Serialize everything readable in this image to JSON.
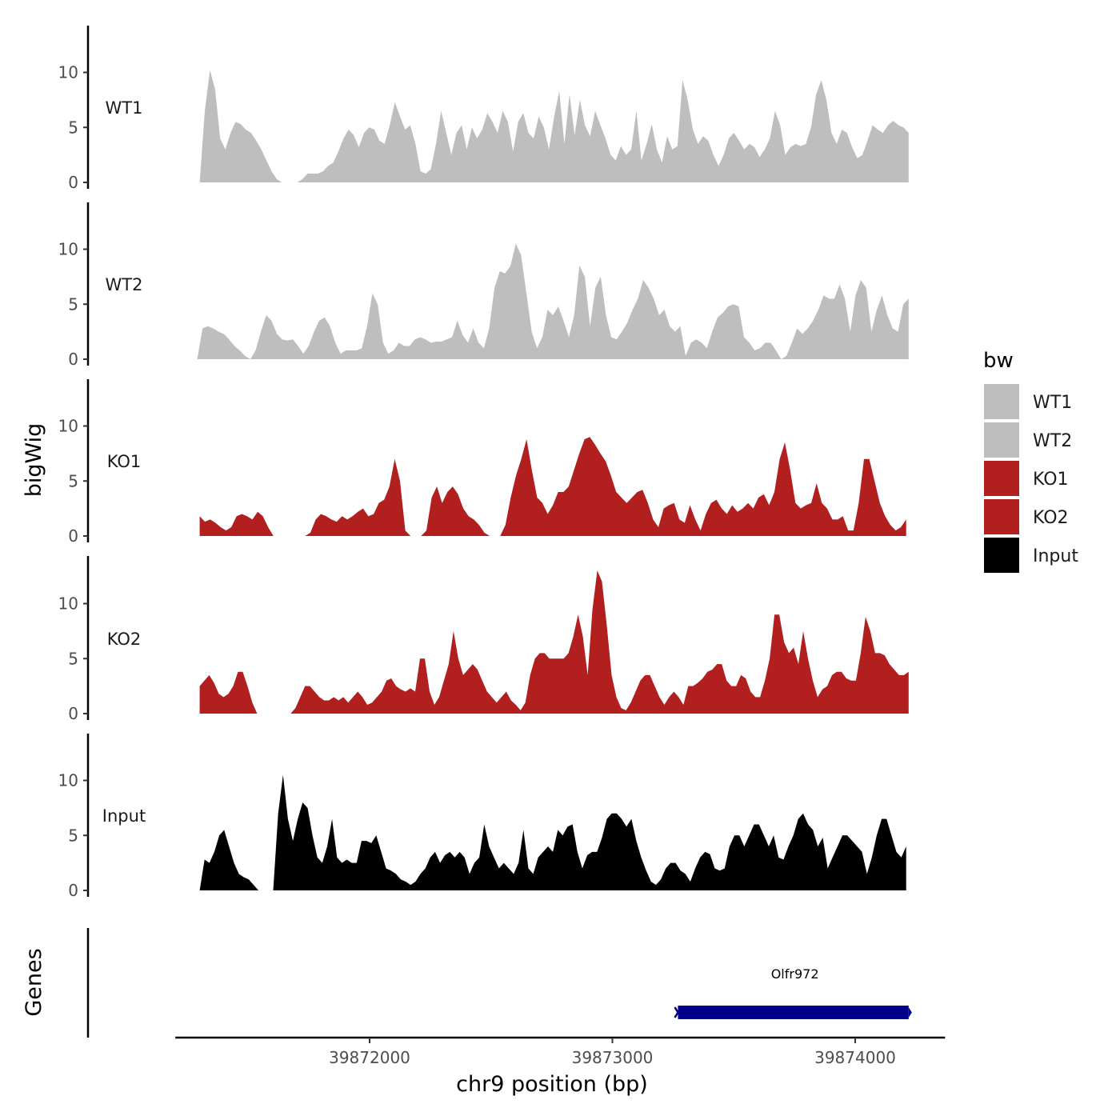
{
  "chart_data": {
    "type": "area",
    "chromosome": "chr9",
    "xlabel": "chr9 position (bp)",
    "ylabel": "bigWig",
    "genes_panel_label": "Genes",
    "xlim": [
      39871200,
      39874370
    ],
    "x_ticks": [
      39872000,
      39873000,
      39874000
    ],
    "x_tick_labels": [
      "39872000",
      "39873000",
      "39874000"
    ],
    "ylim": [
      0,
      14
    ],
    "y_ticks": [
      0,
      5,
      10
    ],
    "y_tick_labels": [
      "0",
      "5",
      "10"
    ],
    "legend": {
      "title": "bw",
      "placement": "right",
      "entries": [
        {
          "label": "WT1",
          "color": "#bebebe"
        },
        {
          "label": "WT2",
          "color": "#bebebe"
        },
        {
          "label": "KO1",
          "color": "#b21f1f"
        },
        {
          "label": "KO2",
          "color": "#b21f1f"
        },
        {
          "label": "Input",
          "color": "#000000"
        }
      ]
    },
    "series": [
      {
        "name": "WT1",
        "color": "#bebebe",
        "x_start": 39871300,
        "x_end": 39874220,
        "values": [
          0,
          6.5,
          10.2,
          8.5,
          4,
          3,
          4.5,
          5.5,
          5.3,
          4.8,
          4.5,
          3.8,
          3,
          2,
          1,
          0.3,
          0,
          0,
          0,
          0,
          0.3,
          0.8,
          0.8,
          0.8,
          1,
          1.5,
          1.8,
          2.8,
          4,
          4.8,
          4.3,
          3.2,
          4.5,
          5,
          4.8,
          3.8,
          3.5,
          5.2,
          7.3,
          6,
          4.8,
          5.2,
          3.5,
          1,
          0.8,
          1.2,
          3.5,
          6.5,
          4.5,
          2.5,
          4.5,
          5.2,
          3,
          5,
          4,
          4.8,
          6.3,
          5.5,
          4.5,
          6.5,
          5.5,
          2.8,
          5.5,
          6.3,
          4.5,
          4,
          6,
          5,
          3,
          6,
          8.3,
          3.5,
          8,
          4.3,
          7.5,
          5.2,
          4.2,
          6.5,
          5.2,
          4,
          2.5,
          2,
          3.3,
          2.5,
          3,
          6.5,
          2,
          3.5,
          5.3,
          3,
          1.8,
          4.2,
          3,
          3.3,
          9.3,
          7.5,
          4.8,
          3.5,
          4.2,
          3.8,
          2.5,
          1.5,
          2.5,
          4,
          4.5,
          3.8,
          3,
          3.5,
          3.2,
          2.3,
          3,
          4,
          6.5,
          5.2,
          2.5,
          3.2,
          3.5,
          3.3,
          3.5,
          5,
          8,
          9.3,
          7.5,
          4.5,
          3.5,
          4.8,
          4.5,
          3.2,
          2.2,
          2.5,
          3.8,
          5.2,
          4.8,
          4.5,
          5.2,
          5.6,
          5.2,
          5,
          4.5
        ]
      },
      {
        "name": "WT2",
        "color": "#bebebe",
        "x_start": 39871290,
        "x_end": 39874220,
        "values": [
          0,
          2.8,
          3,
          2.8,
          2.5,
          2.3,
          1.8,
          1.2,
          0.8,
          0.3,
          0,
          0.8,
          2.5,
          4,
          3.5,
          2.3,
          1.8,
          1.7,
          1.8,
          1.2,
          0.5,
          1.2,
          2.5,
          3.5,
          3.8,
          3,
          1.5,
          0.5,
          0.8,
          0.8,
          0.8,
          1,
          3,
          6,
          5,
          1.5,
          0.5,
          0.8,
          1.5,
          1.2,
          1.2,
          1.8,
          2,
          1.8,
          1.5,
          1.6,
          1.6,
          1.8,
          2,
          3.5,
          2.2,
          1.5,
          2.8,
          1.5,
          1,
          2.8,
          6.5,
          8,
          7.8,
          8.5,
          10.5,
          9.5,
          6,
          2.5,
          1,
          2,
          4.5,
          4,
          4.8,
          3.5,
          2,
          4,
          8.5,
          7.5,
          3,
          6.5,
          7.5,
          4,
          2,
          1.8,
          2.5,
          3.3,
          4.5,
          5.5,
          7.2,
          6.5,
          5.5,
          4,
          4.5,
          3,
          2.5,
          3,
          0.3,
          1.5,
          1.8,
          1.5,
          1,
          2.5,
          3.8,
          4.2,
          4.8,
          5,
          4.8,
          2,
          1.5,
          0.8,
          1,
          1.5,
          1.5,
          0.8,
          0,
          0.3,
          1.5,
          2.8,
          2.3,
          2.8,
          3.5,
          4.5,
          5.8,
          5.5,
          5.5,
          6.8,
          5.5,
          2.5,
          5.8,
          7.2,
          6.5,
          2.5,
          4.5,
          5.8,
          4,
          2.8,
          2.5,
          5,
          5.5
        ]
      },
      {
        "name": "KO1",
        "color": "#b21f1f",
        "x_start": 39871300,
        "x_end": 39874210,
        "values": [
          1.8,
          1.3,
          1.5,
          1.2,
          0.8,
          0.5,
          0.8,
          1.8,
          2,
          1.8,
          1.5,
          2.2,
          1.8,
          0.8,
          0,
          0,
          0,
          0,
          0,
          0,
          0,
          0.3,
          1.5,
          2,
          1.8,
          1.5,
          1.3,
          1.8,
          1.5,
          1.8,
          2.2,
          2.5,
          1.8,
          2,
          3,
          3.3,
          4.5,
          7,
          5,
          0.5,
          0,
          0,
          0,
          0.5,
          3.5,
          4.5,
          3,
          4,
          4.5,
          3.8,
          2.5,
          1.8,
          1.5,
          1,
          0.3,
          0,
          0,
          0,
          1,
          3.5,
          5.5,
          7,
          8.8,
          6,
          3.5,
          3,
          2,
          2.8,
          4,
          4,
          4.5,
          6,
          7.5,
          8.8,
          9,
          8.3,
          7.5,
          6.8,
          5.5,
          4,
          3.5,
          3,
          3.5,
          4,
          4.2,
          3,
          1.5,
          0.8,
          2.5,
          2.8,
          3,
          1.5,
          1.2,
          2.8,
          1.5,
          0.5,
          2,
          3,
          3.3,
          2.5,
          2,
          2.8,
          2.2,
          2.5,
          3,
          2.5,
          3.5,
          3.8,
          2.8,
          4,
          7,
          8.5,
          6,
          3,
          2.5,
          2.8,
          3,
          4.8,
          3,
          2.5,
          1.5,
          1.5,
          1.8,
          0.5,
          0.5,
          3,
          7,
          7,
          5,
          3,
          1.8,
          1,
          0.5,
          0.8,
          1.5
        ]
      },
      {
        "name": "KO2",
        "color": "#b21f1f",
        "x_start": 39871300,
        "x_end": 39874220,
        "values": [
          2.5,
          3,
          3.5,
          2.8,
          1.8,
          1.5,
          1.8,
          2.5,
          3.8,
          3.8,
          2.5,
          1,
          0,
          0,
          0,
          0,
          0,
          0,
          0,
          0,
          0.5,
          1.5,
          2.5,
          2.5,
          2,
          1.5,
          1.2,
          1.2,
          1.5,
          1.2,
          1.5,
          1,
          1.5,
          2,
          1.5,
          0.8,
          1,
          1.5,
          2,
          3,
          3.2,
          2.5,
          2.2,
          2,
          2.3,
          2,
          5,
          5,
          2,
          0.8,
          1.5,
          3,
          4.5,
          7.5,
          5,
          3.5,
          4,
          4.5,
          4,
          3,
          2,
          1.5,
          1,
          1.5,
          2,
          1.2,
          0.8,
          0.3,
          1,
          3.5,
          5,
          5.5,
          5.5,
          5,
          5,
          5,
          5,
          5.5,
          7,
          9,
          7,
          3.5,
          9.5,
          13,
          12,
          8,
          3.5,
          1.5,
          0.5,
          0.3,
          1,
          2,
          3,
          3.5,
          3.5,
          2.5,
          1.5,
          0.8,
          1.5,
          2,
          1.5,
          0.8,
          2.5,
          2.5,
          2.8,
          3.2,
          3.8,
          4,
          4.5,
          4.5,
          3,
          2.5,
          2.5,
          3.5,
          3.2,
          2,
          1.5,
          1.5,
          3,
          5,
          9,
          9,
          6.5,
          5.5,
          6,
          4.5,
          7.5,
          5,
          3,
          1.5,
          2.2,
          2.5,
          3.5,
          3.8,
          3.8,
          3.2,
          3,
          3,
          5.5,
          8.8,
          7.5,
          5.5,
          5.5,
          5.3,
          4.5,
          4,
          3.5,
          3.5,
          3.8
        ]
      },
      {
        "name": "Input",
        "color": "#000000",
        "x_start": 39871300,
        "x_end": 39874210,
        "values": [
          0,
          2.8,
          2.5,
          3.5,
          5,
          5.5,
          4,
          2.5,
          1.5,
          1.2,
          1,
          0.5,
          0,
          0,
          0,
          0,
          7,
          10.5,
          6.5,
          4.5,
          6.5,
          8,
          7.5,
          5,
          3,
          2.5,
          4,
          6.5,
          3,
          2.5,
          2.8,
          2.5,
          2.5,
          4.5,
          4.5,
          4.3,
          5,
          3.5,
          2,
          1.8,
          1.5,
          1,
          0.8,
          0.5,
          0.8,
          1.5,
          2,
          3,
          3.5,
          2.5,
          3.2,
          3.5,
          3,
          3.5,
          3,
          1.5,
          2.5,
          3,
          6,
          4,
          3,
          2,
          2.5,
          2,
          1.5,
          2.5,
          5.5,
          2,
          1.5,
          3,
          3.5,
          4,
          3.5,
          5.5,
          5,
          5.8,
          6,
          3.5,
          2,
          3.2,
          3.5,
          3.5,
          4.8,
          6.5,
          7,
          7,
          6.5,
          5.8,
          6.5,
          4.5,
          3,
          1.8,
          0.8,
          0.5,
          1,
          2,
          2.5,
          2.5,
          1.8,
          1.5,
          0.8,
          2,
          3,
          3.5,
          3.3,
          2,
          1.8,
          2,
          4,
          5,
          5,
          4,
          5,
          6,
          6,
          5,
          4,
          5,
          3,
          2.8,
          4,
          5,
          6.5,
          7,
          6,
          5.5,
          4,
          4.8,
          2,
          3,
          4,
          5,
          5,
          4.5,
          4,
          3.5,
          1.5,
          3,
          5,
          6.5,
          6.5,
          5,
          3.5,
          3,
          4
        ]
      }
    ],
    "genes": [
      {
        "name": "Olfr972",
        "start": 39873270,
        "end": 39874220,
        "strand": "-",
        "color": "#00008b"
      }
    ]
  }
}
